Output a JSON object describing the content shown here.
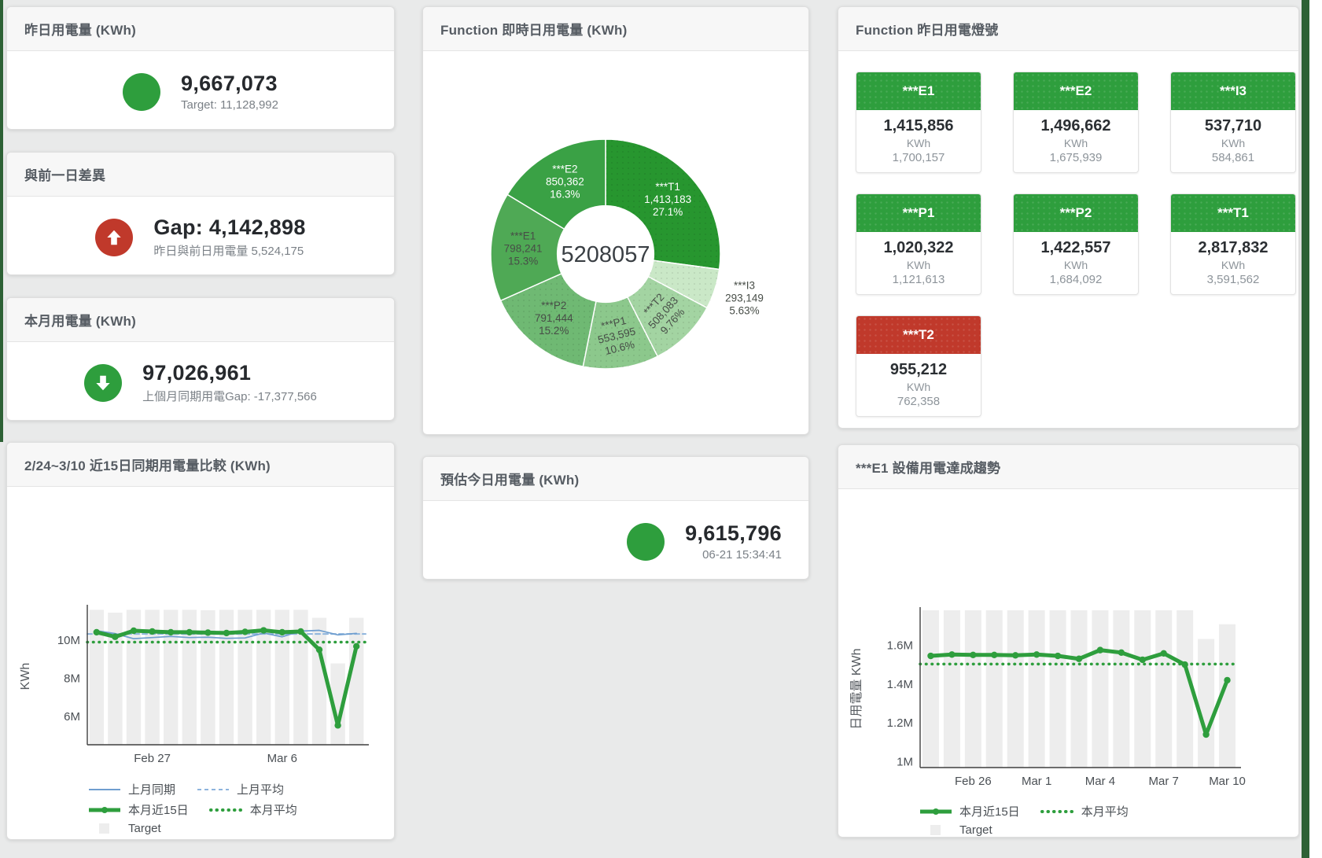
{
  "colors": {
    "accent_green": "#2e9e3d",
    "accent_red": "#c0392b",
    "bar_gray": "#ededed",
    "blue_line": "#6f9ecf",
    "blue_dash": "#8db4dd"
  },
  "cards": {
    "yesterday": {
      "title": "昨日用電量 (KWh)",
      "value": "9,667,073",
      "subtext": "Target: 11,128,992"
    },
    "gap": {
      "title": "與前一日差異",
      "value": "Gap: 4,142,898",
      "subtext": "昨日與前日用電量 5,524,175"
    },
    "month": {
      "title": "本月用電量 (KWh)",
      "value": "97,026,961",
      "subtext": "上個月同期用電Gap: -17,377,566"
    },
    "estimate": {
      "title": "預估今日用電量 (KWh)",
      "value": "9,615,796",
      "subtext": "06-21 15:34:41"
    },
    "lights": {
      "title": "Function 昨日用電燈號",
      "tiles": [
        {
          "label": "***E1",
          "value": "1,415,856",
          "unit": "KWh",
          "target": "1,700,157",
          "color": "green"
        },
        {
          "label": "***E2",
          "value": "1,496,662",
          "unit": "KWh",
          "target": "1,675,939",
          "color": "green"
        },
        {
          "label": "***I3",
          "value": "537,710",
          "unit": "KWh",
          "target": "584,861",
          "color": "green"
        },
        {
          "label": "***P1",
          "value": "1,020,322",
          "unit": "KWh",
          "target": "1,121,613",
          "color": "green"
        },
        {
          "label": "***P2",
          "value": "1,422,557",
          "unit": "KWh",
          "target": "1,684,092",
          "color": "green"
        },
        {
          "label": "***T1",
          "value": "2,817,832",
          "unit": "KWh",
          "target": "3,591,562",
          "color": "green"
        },
        {
          "label": "***T2",
          "value": "955,212",
          "unit": "KWh",
          "target": "762,358",
          "color": "red"
        }
      ]
    }
  },
  "chart_data": [
    {
      "type": "pie",
      "title": "Function 即時日用電量 (KWh)",
      "center_total": "5208057",
      "hole": 0.42,
      "slices": [
        {
          "name": "***T1",
          "value": 1413183,
          "display": "1,413,183",
          "pct": "27.1%",
          "color": "#27962f",
          "label_color": "#ffffff",
          "pattern": true,
          "label_pos": "inside",
          "rot": 0
        },
        {
          "name": "***I3",
          "value": 293149,
          "display": "293,149",
          "pct": "5.63%",
          "color": "#cae8c7",
          "label_color": "#474d47",
          "pattern": true,
          "label_pos": "outside",
          "rot": 0
        },
        {
          "name": "***T2",
          "value": 508083,
          "display": "508,083",
          "pct": "9.76%",
          "color": "#a3d4a2",
          "label_color": "#474d47",
          "pattern": true,
          "label_pos": "inside",
          "rot": -48
        },
        {
          "name": "***P1",
          "value": 553595,
          "display": "553,595",
          "pct": "10.6%",
          "color": "#8cc88c",
          "label_color": "#474d47",
          "pattern": true,
          "label_pos": "inside",
          "rot": -14
        },
        {
          "name": "***P2",
          "value": 791444,
          "display": "791,444",
          "pct": "15.2%",
          "color": "#6fb973",
          "label_color": "#474d47",
          "pattern": true,
          "label_pos": "inside",
          "rot": 0
        },
        {
          "name": "***E1",
          "value": 798241,
          "display": "798,241",
          "pct": "15.3%",
          "color": "#4fa955",
          "label_color": "#474d47",
          "pattern": false,
          "label_pos": "inside",
          "rot": 0
        },
        {
          "name": "***E2",
          "value": 850362,
          "display": "850,362",
          "pct": "16.3%",
          "color": "#3aa145",
          "label_color": "#ffffff",
          "pattern": false,
          "label_pos": "inside",
          "rot": 0
        }
      ]
    },
    {
      "type": "line",
      "title": "2/24~3/10 近15日同期用電量比較 (KWh)",
      "ylabel": "KWh",
      "ylim": [
        4.5,
        11.7
      ],
      "x_count": 15,
      "yticks": [
        {
          "v": 6,
          "label": "6M"
        },
        {
          "v": 8,
          "label": "8M"
        },
        {
          "v": 10,
          "label": "10M"
        }
      ],
      "xticks": [
        {
          "i": 3,
          "label": "Feb 27"
        },
        {
          "i": 10,
          "label": "Mar 6"
        }
      ],
      "target_bars": [
        11.6,
        11.45,
        11.6,
        11.6,
        11.6,
        11.6,
        11.58,
        11.6,
        11.6,
        11.6,
        11.6,
        11.6,
        11.18,
        8.78,
        11.18
      ],
      "series": [
        {
          "name": "上月同期",
          "style": "thin",
          "color": "#6f9ecf",
          "values": [
            10.5,
            10.35,
            10.08,
            10.14,
            10.2,
            10.14,
            10.16,
            10.1,
            10.12,
            10.38,
            10.18,
            10.48,
            10.52,
            10.28,
            10.36
          ]
        },
        {
          "name": "本月近15日",
          "style": "thick",
          "color": "#2e9e3d",
          "values": [
            10.42,
            10.18,
            10.5,
            10.46,
            10.42,
            10.42,
            10.4,
            10.38,
            10.44,
            10.52,
            10.42,
            10.46,
            9.5,
            5.52,
            9.68
          ]
        }
      ],
      "avg_lines": [
        {
          "name": "上月平均",
          "style": "dash",
          "color": "#8db4dd",
          "value": 10.33
        },
        {
          "name": "本月平均",
          "style": "dot",
          "color": "#2e9e3d",
          "value": 9.9
        }
      ],
      "target_label": "Target",
      "legend_rows": [
        [
          {
            "label": "上月同期",
            "swatch": "thin",
            "color": "#6f9ecf"
          },
          {
            "label": "上月平均",
            "swatch": "dash",
            "color": "#8db4dd"
          }
        ],
        [
          {
            "label": "本月近15日",
            "swatch": "thick",
            "color": "#2e9e3d"
          },
          {
            "label": "本月平均",
            "swatch": "dot",
            "color": "#2e9e3d"
          }
        ],
        [
          {
            "label": "Target",
            "swatch": "square",
            "color": "#ededed"
          }
        ]
      ]
    },
    {
      "type": "line",
      "title": "***E1 設備用電達成趨勢",
      "ylabel": "日用電量 KWh",
      "ylim": [
        0.97,
        1.78
      ],
      "x_count": 15,
      "yticks": [
        {
          "v": 1,
          "label": "1M"
        },
        {
          "v": 1.2,
          "label": "1.2M"
        },
        {
          "v": 1.4,
          "label": "1.4M"
        },
        {
          "v": 1.6,
          "label": "1.6M"
        }
      ],
      "xticks": [
        {
          "i": 2,
          "label": "Feb 26"
        },
        {
          "i": 5,
          "label": "Mar 1"
        },
        {
          "i": 8,
          "label": "Mar 4"
        },
        {
          "i": 11,
          "label": "Mar 7"
        },
        {
          "i": 14,
          "label": "Mar 10"
        }
      ],
      "target_bars": [
        1.78,
        1.78,
        1.78,
        1.78,
        1.78,
        1.78,
        1.78,
        1.78,
        1.78,
        1.78,
        1.78,
        1.78,
        1.78,
        1.632,
        1.708
      ],
      "series": [
        {
          "name": "本月近15日",
          "style": "thick",
          "color": "#2e9e3d",
          "values": [
            1.545,
            1.552,
            1.55,
            1.55,
            1.548,
            1.552,
            1.545,
            1.53,
            1.575,
            1.562,
            1.525,
            1.558,
            1.5,
            1.14,
            1.42
          ]
        }
      ],
      "avg_lines": [
        {
          "name": "本月平均",
          "style": "dot",
          "color": "#2e9e3d",
          "value": 1.503
        }
      ],
      "target_label": "Target",
      "legend_rows": [
        [
          {
            "label": "本月近15日",
            "swatch": "thick",
            "color": "#2e9e3d"
          },
          {
            "label": "本月平均",
            "swatch": "dot",
            "color": "#2e9e3d"
          }
        ],
        [
          {
            "label": "Target",
            "swatch": "square",
            "color": "#ededed"
          }
        ]
      ]
    }
  ]
}
